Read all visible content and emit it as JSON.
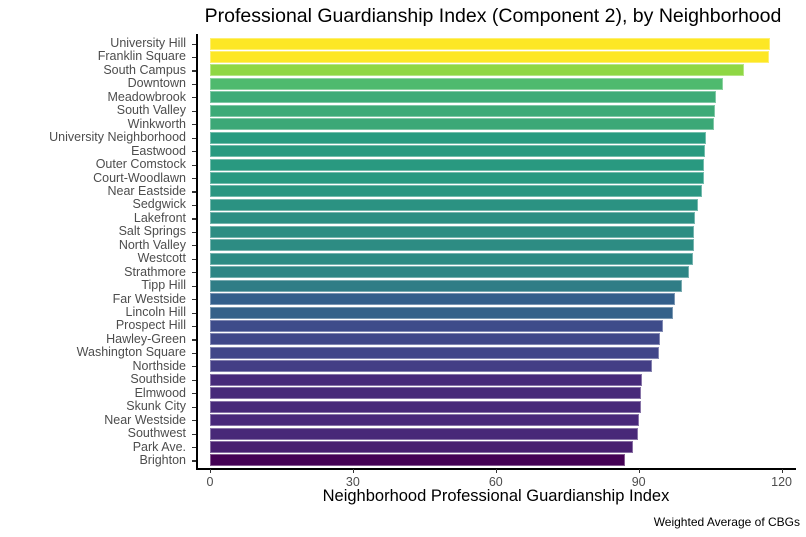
{
  "chart_data": {
    "type": "bar",
    "orientation": "horizontal",
    "title": "Professional Guardianship Index (Component 2), by Neighborhood",
    "xlabel": "Neighborhood Professional Guardianship Index",
    "ylabel": "",
    "caption": "Weighted Average of CBGs",
    "xlim": [
      0,
      122
    ],
    "xticks": [
      0,
      30,
      60,
      90,
      120
    ],
    "xtick_labels": [
      "0",
      "30",
      "60",
      "90",
      "120"
    ],
    "grid": false,
    "legend": null,
    "color_scale": "viridis (by value)",
    "categories": [
      "University Hill",
      "Franklin Square",
      "South Campus",
      "Downtown",
      "Meadowbrook",
      "South Valley",
      "Winkworth",
      "University Neighborhood",
      "Eastwood",
      "Outer Comstock",
      "Court-Woodlawn",
      "Near Eastside",
      "Sedgwick",
      "Lakefront",
      "Salt Springs",
      "North Valley",
      "Westcott",
      "Strathmore",
      "Tipp Hill",
      "Far Westside",
      "Lincoln Hill",
      "Prospect Hill",
      "Hawley-Green",
      "Washington Square",
      "Northside",
      "Southside",
      "Elmwood",
      "Skunk City",
      "Near Westside",
      "Southwest",
      "Park Ave.",
      "Brighton"
    ],
    "values": [
      117.6,
      117.4,
      112.2,
      107.8,
      106.3,
      106.1,
      105.9,
      104.2,
      104.0,
      103.8,
      103.7,
      103.2,
      102.5,
      101.9,
      101.7,
      101.6,
      101.4,
      100.5,
      99.2,
      97.7,
      97.3,
      95.2,
      94.5,
      94.2,
      92.9,
      90.6,
      90.4,
      90.4,
      90.1,
      89.9,
      88.9,
      87.2
    ],
    "colors": [
      "#fde725",
      "#fde725",
      "#8fd744",
      "#4fba6e",
      "#3eab77",
      "#3daa77",
      "#3ca877",
      "#289b80",
      "#289a80",
      "#299980",
      "#299981",
      "#2a9681",
      "#2b9282",
      "#2c8e83",
      "#2c8d83",
      "#2d8c83",
      "#2d8b84",
      "#2e8685",
      "#307d86",
      "#335f8b",
      "#346189",
      "#3e4c8a",
      "#404889",
      "#414689",
      "#433e85",
      "#472a7a",
      "#472979",
      "#472979",
      "#48287a",
      "#482878",
      "#481f70",
      "#440154"
    ]
  }
}
